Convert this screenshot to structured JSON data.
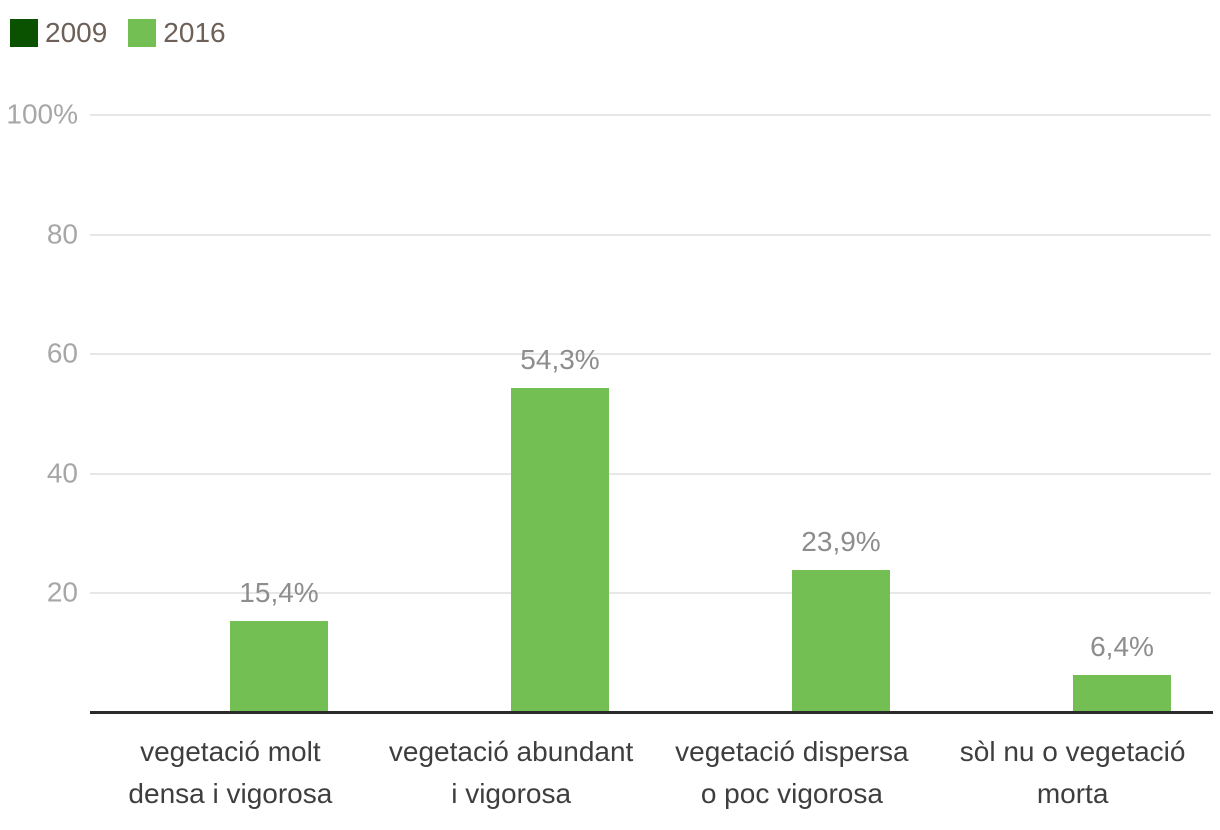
{
  "chart_data": {
    "type": "bar",
    "title": "",
    "categories": [
      "vegetació molt densa i vigorosa",
      "vegetació abundant i vigorosa",
      "vegetació dispersa o poc vigorosa",
      "sòl nu o vegetació morta"
    ],
    "category_lines": [
      [
        "vegetació molt",
        "densa i vigorosa"
      ],
      [
        "vegetació abundant",
        "i vigorosa"
      ],
      [
        "vegetació dispersa",
        "o poc vigorosa"
      ],
      [
        "sòl nu o vegetació",
        "morta"
      ]
    ],
    "series": [
      {
        "name": "2009",
        "color": "#0a5200",
        "values": [
          null,
          null,
          null,
          null
        ],
        "value_labels": [
          null,
          null,
          null,
          null
        ]
      },
      {
        "name": "2016",
        "color": "#74bf54",
        "values": [
          15.4,
          54.3,
          23.9,
          6.4
        ],
        "value_labels": [
          "15,4%",
          "54,3%",
          "23,9%",
          "6,4%"
        ]
      }
    ],
    "y_axis": {
      "min": 0,
      "max": 100,
      "tick_values": [
        100,
        80,
        60,
        40,
        20
      ],
      "tick_labels": [
        "100%",
        "80",
        "60",
        "40",
        "20"
      ],
      "grid": true
    },
    "legend_position": "top-left",
    "ylim": [
      0,
      100
    ]
  },
  "colors": {
    "series_2009": "#0a5200",
    "series_2016": "#74bf54",
    "grid_line": "#e7e7e7",
    "axis_line": "#2b2b2b",
    "tick_label": "#a7a7a7",
    "value_label": "#8d8d8d",
    "category_label": "#3e3e3e",
    "legend_label": "#6c6058",
    "background": "#ffffff"
  }
}
